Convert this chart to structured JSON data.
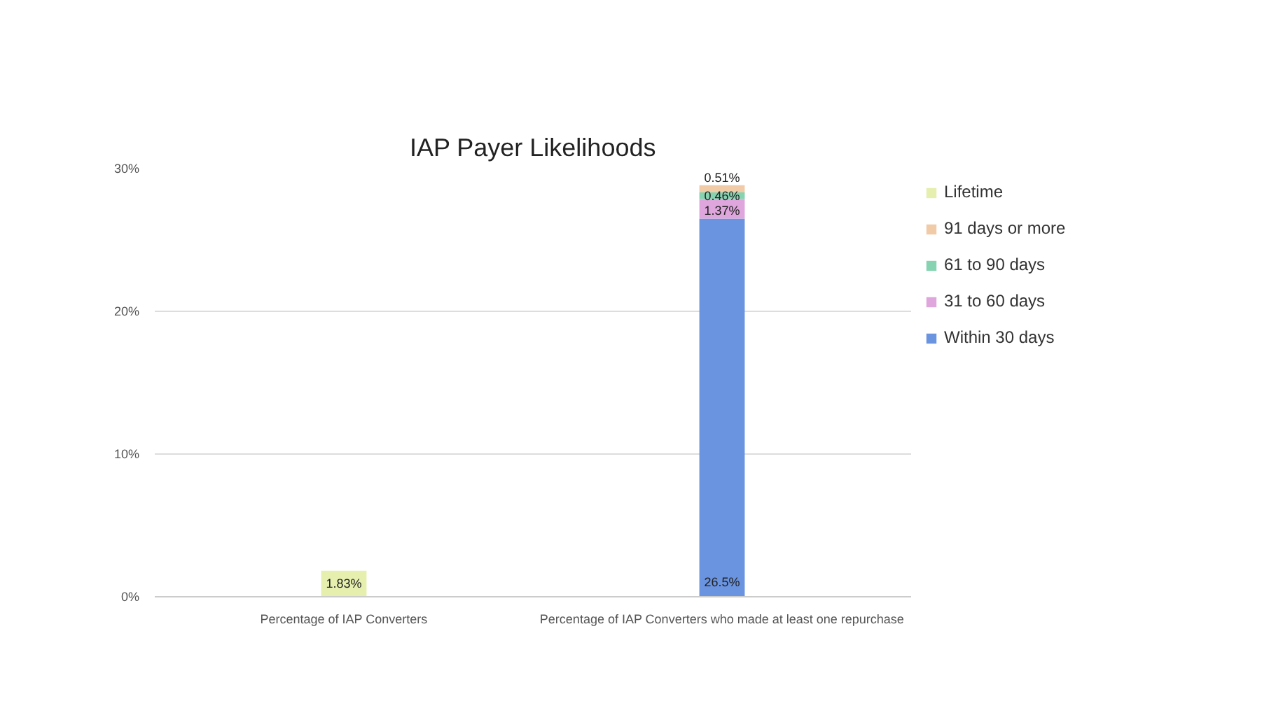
{
  "chart_data": {
    "type": "bar",
    "title": "IAP Payer Likelihoods",
    "stacked": true,
    "categories": [
      "Percentage of IAP Converters",
      "Percentage of IAP Converters who made at least one repurchase"
    ],
    "series": [
      {
        "name": "Within 30 days",
        "color": "#6a93e0",
        "values": [
          null,
          26.5
        ],
        "value_labels": [
          null,
          "26.5%"
        ]
      },
      {
        "name": "31 to 60 days",
        "color": "#dea6dc",
        "values": [
          null,
          1.37
        ],
        "value_labels": [
          null,
          "1.37%"
        ]
      },
      {
        "name": "61 to 90 days",
        "color": "#86d3b1",
        "values": [
          null,
          0.46
        ],
        "value_labels": [
          null,
          "0.46%"
        ]
      },
      {
        "name": "91 days or more",
        "color": "#f1cba8",
        "values": [
          null,
          0.51
        ],
        "value_labels": [
          null,
          "0.51%"
        ]
      },
      {
        "name": "Lifetime",
        "color": "#e6efae",
        "values": [
          1.83,
          null
        ],
        "value_labels": [
          "1.83%",
          null
        ]
      }
    ],
    "ylim": [
      0,
      30
    ],
    "yticks": [
      {
        "value": 0,
        "label": "0%"
      },
      {
        "value": 10,
        "label": "10%"
      },
      {
        "value": 20,
        "label": "20%"
      },
      {
        "value": 30,
        "label": "30%"
      }
    ],
    "grid": "y",
    "legend": "right"
  }
}
